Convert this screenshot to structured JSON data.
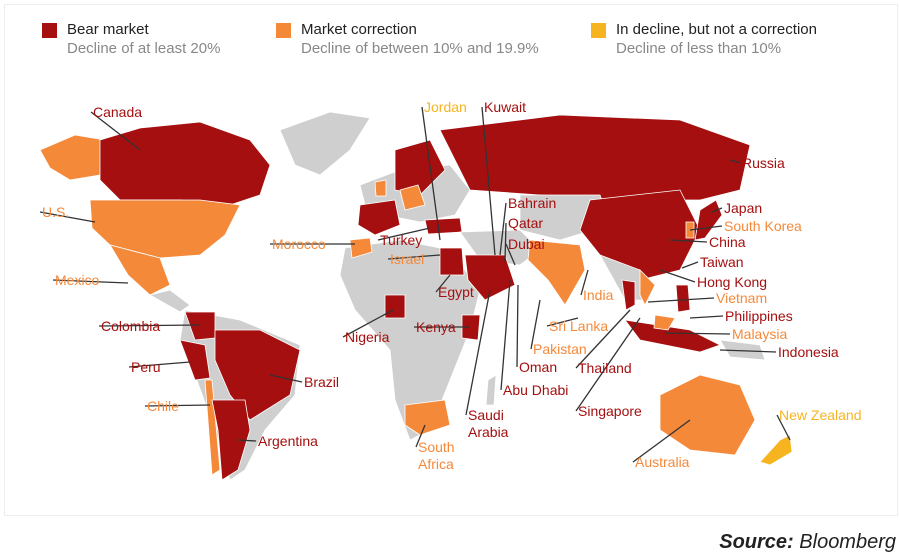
{
  "colors": {
    "bear": "#a50f0f",
    "correction": "#f5893a",
    "decline": "#f7b421",
    "no_data": "#cfcfcf",
    "leader": "#333333"
  },
  "legend": [
    {
      "key": "bear",
      "title": "Bear market",
      "subtitle": "Decline of at least 20%"
    },
    {
      "key": "correction",
      "title": "Market correction",
      "subtitle": "Decline of between 10% and 19.9%"
    },
    {
      "key": "decline",
      "title": "In decline, but not a correction",
      "subtitle": "Decline of less than 10%"
    }
  ],
  "countries": [
    {
      "name": "Canada",
      "category": "bear"
    },
    {
      "name": "Jordan",
      "category": "decline"
    },
    {
      "name": "Kuwait",
      "category": "bear"
    },
    {
      "name": "Russia",
      "category": "bear"
    },
    {
      "name": "U.S.",
      "category": "correction"
    },
    {
      "name": "Japan",
      "category": "bear"
    },
    {
      "name": "South Korea",
      "category": "correction"
    },
    {
      "name": "Bahrain",
      "category": "bear"
    },
    {
      "name": "Qatar",
      "category": "bear"
    },
    {
      "name": "Morocco",
      "category": "correction"
    },
    {
      "name": "Turkey",
      "category": "bear"
    },
    {
      "name": "Dubai",
      "category": "bear"
    },
    {
      "name": "China",
      "category": "bear"
    },
    {
      "name": "Israel",
      "category": "correction"
    },
    {
      "name": "Taiwan",
      "category": "bear"
    },
    {
      "name": "Mexico",
      "category": "correction"
    },
    {
      "name": "Egypt",
      "category": "bear"
    },
    {
      "name": "Hong Kong",
      "category": "bear"
    },
    {
      "name": "India",
      "category": "correction"
    },
    {
      "name": "Vietnam",
      "category": "correction"
    },
    {
      "name": "Colombia",
      "category": "bear"
    },
    {
      "name": "Kenya",
      "category": "bear"
    },
    {
      "name": "Nigeria",
      "category": "bear"
    },
    {
      "name": "Sri Lanka",
      "category": "correction"
    },
    {
      "name": "Philippines",
      "category": "bear"
    },
    {
      "name": "Malaysia",
      "category": "correction"
    },
    {
      "name": "Pakistan",
      "category": "correction"
    },
    {
      "name": "Indonesia",
      "category": "bear"
    },
    {
      "name": "Oman",
      "category": "bear"
    },
    {
      "name": "Thailand",
      "category": "bear"
    },
    {
      "name": "Peru",
      "category": "bear"
    },
    {
      "name": "Brazil",
      "category": "bear"
    },
    {
      "name": "Abu Dhabi",
      "category": "bear"
    },
    {
      "name": "Chile",
      "category": "correction"
    },
    {
      "name": "Singapore",
      "category": "bear"
    },
    {
      "name": "Saudi\nArabia",
      "category": "bear"
    },
    {
      "name": "New Zealand",
      "category": "decline"
    },
    {
      "name": "Argentina",
      "category": "bear"
    },
    {
      "name": "South\nAfrica",
      "category": "correction"
    },
    {
      "name": "Australia",
      "category": "correction"
    }
  ],
  "source": {
    "prefix": "Source:",
    "name": "Bloomberg"
  }
}
